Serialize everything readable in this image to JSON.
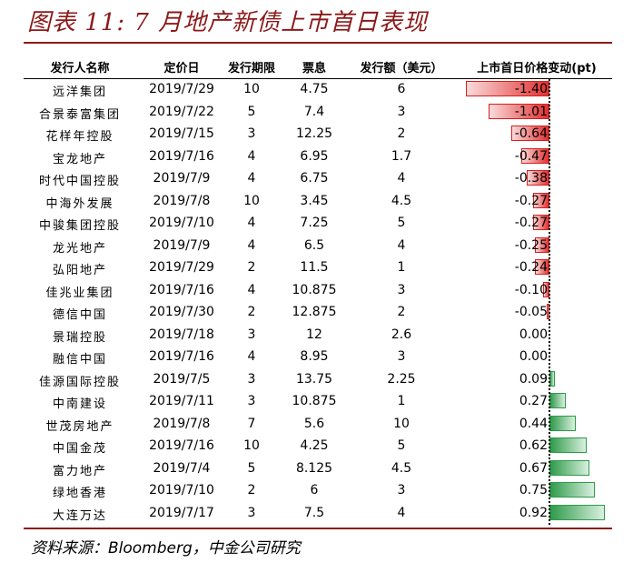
{
  "title": "图表 11: 7 月地产新债上市首日表现",
  "source": "资料来源：Bloomberg，中金公司研究",
  "headers": {
    "issuer": "发行人名称",
    "pricing_date": "定价日",
    "tenor": "发行期限",
    "coupon": "票息",
    "amount": "发行额（美元）",
    "change": "上市首日价格变动(pt)"
  },
  "colors": {
    "negative": "#e03030",
    "positive": "#2e9a4a",
    "title": "#8b1a1a"
  },
  "chart_data": {
    "type": "table",
    "bar_column": "上市首日价格变动(pt)",
    "rows": [
      {
        "issuer": "远洋集团",
        "pricing_date": "2019/7/29",
        "tenor": "10",
        "coupon": "4.75",
        "amount": "6",
        "change": -1.4,
        "change_label": "-1.40"
      },
      {
        "issuer": "合景泰富集团",
        "pricing_date": "2019/7/22",
        "tenor": "5",
        "coupon": "7.4",
        "amount": "3",
        "change": -1.01,
        "change_label": "-1.01"
      },
      {
        "issuer": "花样年控股",
        "pricing_date": "2019/7/15",
        "tenor": "3",
        "coupon": "12.25",
        "amount": "2",
        "change": -0.64,
        "change_label": "-0.64"
      },
      {
        "issuer": "宝龙地产",
        "pricing_date": "2019/7/16",
        "tenor": "4",
        "coupon": "6.95",
        "amount": "1.7",
        "change": -0.47,
        "change_label": "-0.47"
      },
      {
        "issuer": "时代中国控股",
        "pricing_date": "2019/7/9",
        "tenor": "4",
        "coupon": "6.75",
        "amount": "4",
        "change": -0.38,
        "change_label": "-0.38"
      },
      {
        "issuer": "中海外发展",
        "pricing_date": "2019/7/8",
        "tenor": "10",
        "coupon": "3.45",
        "amount": "4.5",
        "change": -0.27,
        "change_label": "-0.27"
      },
      {
        "issuer": "中骏集团控股",
        "pricing_date": "2019/7/10",
        "tenor": "4",
        "coupon": "7.25",
        "amount": "5",
        "change": -0.27,
        "change_label": "-0.27"
      },
      {
        "issuer": "龙光地产",
        "pricing_date": "2019/7/9",
        "tenor": "4",
        "coupon": "6.5",
        "amount": "4",
        "change": -0.25,
        "change_label": "-0.25"
      },
      {
        "issuer": "弘阳地产",
        "pricing_date": "2019/7/29",
        "tenor": "2",
        "coupon": "11.5",
        "amount": "1",
        "change": -0.24,
        "change_label": "-0.24"
      },
      {
        "issuer": "佳兆业集团",
        "pricing_date": "2019/7/16",
        "tenor": "4",
        "coupon": "10.875",
        "amount": "3",
        "change": -0.1,
        "change_label": "-0.10"
      },
      {
        "issuer": "德信中国",
        "pricing_date": "2019/7/30",
        "tenor": "2",
        "coupon": "12.875",
        "amount": "2",
        "change": -0.05,
        "change_label": "-0.05"
      },
      {
        "issuer": "景瑞控股",
        "pricing_date": "2019/7/18",
        "tenor": "3",
        "coupon": "12",
        "amount": "2.6",
        "change": 0.0,
        "change_label": "0.00"
      },
      {
        "issuer": "融信中国",
        "pricing_date": "2019/7/16",
        "tenor": "4",
        "coupon": "8.95",
        "amount": "3",
        "change": 0.0,
        "change_label": "0.00"
      },
      {
        "issuer": "佳源国际控股",
        "pricing_date": "2019/7/5",
        "tenor": "3",
        "coupon": "13.75",
        "amount": "2.25",
        "change": 0.09,
        "change_label": "0.09"
      },
      {
        "issuer": "中南建设",
        "pricing_date": "2019/7/11",
        "tenor": "3",
        "coupon": "10.875",
        "amount": "1",
        "change": 0.27,
        "change_label": "0.27"
      },
      {
        "issuer": "世茂房地产",
        "pricing_date": "2019/7/8",
        "tenor": "7",
        "coupon": "5.6",
        "amount": "10",
        "change": 0.44,
        "change_label": "0.44"
      },
      {
        "issuer": "中国金茂",
        "pricing_date": "2019/7/16",
        "tenor": "10",
        "coupon": "4.25",
        "amount": "5",
        "change": 0.62,
        "change_label": "0.62"
      },
      {
        "issuer": "富力地产",
        "pricing_date": "2019/7/4",
        "tenor": "5",
        "coupon": "8.125",
        "amount": "4.5",
        "change": 0.67,
        "change_label": "0.67"
      },
      {
        "issuer": "绿地香港",
        "pricing_date": "2019/7/10",
        "tenor": "2",
        "coupon": "6",
        "amount": "3",
        "change": 0.75,
        "change_label": "0.75"
      },
      {
        "issuer": "大连万达",
        "pricing_date": "2019/7/17",
        "tenor": "3",
        "coupon": "7.5",
        "amount": "4",
        "change": 0.92,
        "change_label": "0.92"
      }
    ]
  }
}
